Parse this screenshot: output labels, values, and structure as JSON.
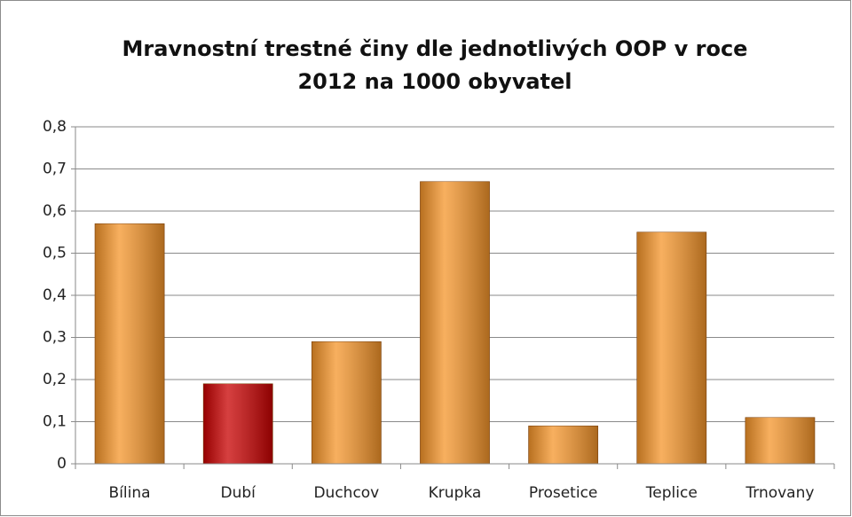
{
  "chart_data": {
    "type": "bar",
    "title": [
      "Mravnostní trestné činy dle jednotlivých OOP v roce",
      "2012 na 1000 obyvatel"
    ],
    "categories": [
      "Bílina",
      "Dubí",
      "Duchcov",
      "Krupka",
      "Prosetice",
      "Teplice",
      "Trnovany"
    ],
    "values": [
      0.57,
      0.19,
      0.29,
      0.67,
      0.09,
      0.55,
      0.11
    ],
    "colors": [
      "#f5952a",
      "#c80000",
      "#f5952a",
      "#f5952a",
      "#f5952a",
      "#f5952a",
      "#f5952a"
    ],
    "ylim": [
      0,
      0.8
    ],
    "yticks": [
      0,
      {
        "value": 0.1,
        "label": "0,1"
      },
      {
        "value": 0.2,
        "label": "0,2"
      },
      {
        "value": 0.3,
        "label": "0,3"
      },
      {
        "value": 0.4,
        "label": "0,4"
      },
      {
        "value": 0.5,
        "label": "0,5"
      },
      {
        "value": 0.6,
        "label": "0,6"
      },
      {
        "value": 0.7,
        "label": "0,7"
      },
      {
        "value": 0.8,
        "label": "0,8"
      }
    ],
    "grid": true
  }
}
